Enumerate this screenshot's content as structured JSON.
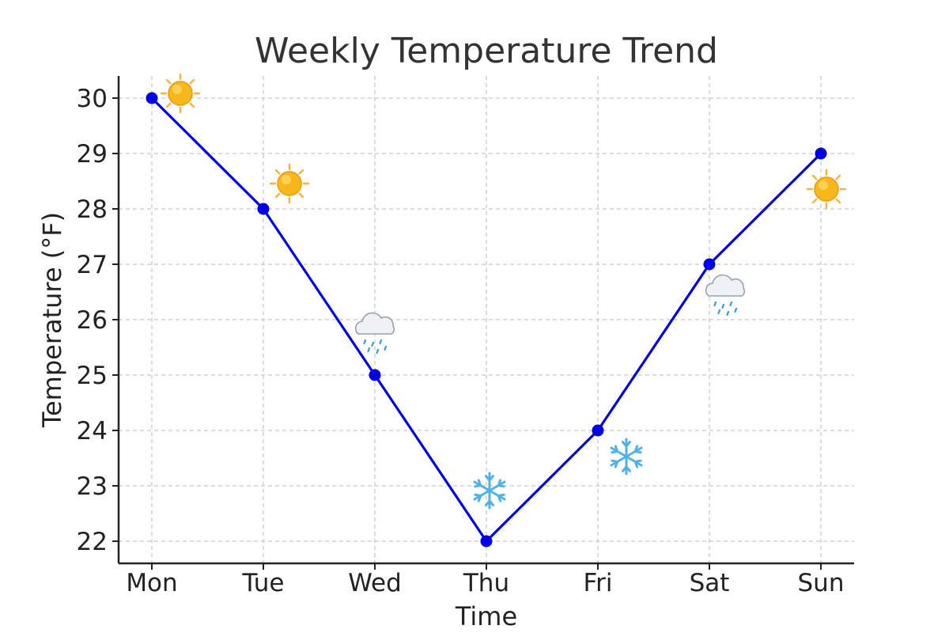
{
  "chart_data": {
    "type": "line",
    "title": "Weekly Temperature Trend",
    "xlabel": "Time",
    "ylabel": "Temperature (°F)",
    "categories": [
      "Mon",
      "Tue",
      "Wed",
      "Thu",
      "Fri",
      "Sat",
      "Sun"
    ],
    "values": [
      30,
      28,
      25,
      22,
      24,
      27,
      29
    ],
    "ylim": [
      21.6,
      30.4
    ],
    "yticks": [
      "22",
      "23",
      "24",
      "25",
      "26",
      "27",
      "28",
      "29",
      "30"
    ],
    "grid": true,
    "legend": "none",
    "colors": {
      "series": "#0000e6",
      "grid": "#c8c8c8",
      "axis": "#222222"
    },
    "annotations": [
      {
        "day": "Mon",
        "icon": "sun-icon"
      },
      {
        "day": "Tue",
        "icon": "sun-icon"
      },
      {
        "day": "Wed",
        "icon": "rain-cloud-icon"
      },
      {
        "day": "Thu",
        "icon": "snowflake-icon"
      },
      {
        "day": "Fri",
        "icon": "snowflake-icon"
      },
      {
        "day": "Sat",
        "icon": "rain-cloud-icon"
      },
      {
        "day": "Sun",
        "icon": "sun-icon"
      }
    ]
  }
}
